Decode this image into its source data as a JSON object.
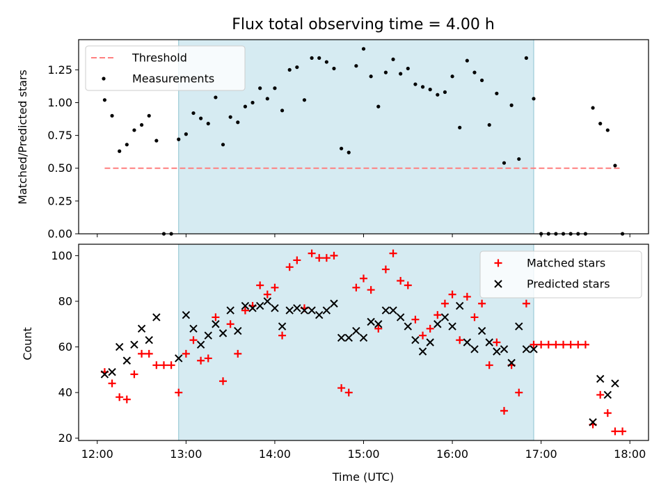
{
  "chart_data": [
    {
      "type": "scatter",
      "title": "Flux total observing time = 4.00 h",
      "xlabel": "",
      "ylabel": "Matched/Predicted stars",
      "xlim_hours": [
        11.79,
        18.21
      ],
      "ylim": [
        0,
        1.48
      ],
      "yticks": [
        0.0,
        0.25,
        0.5,
        0.75,
        1.0,
        1.25
      ],
      "ytick_labels": [
        "0.00",
        "0.25",
        "0.50",
        "0.75",
        "1.00",
        "1.25"
      ],
      "shaded_span": [
        "12:55",
        "16:55"
      ],
      "shaded_color": "#add8e6",
      "legend_placement": "upper-left",
      "series": [
        {
          "name": "Threshold",
          "kind": "dashed-line",
          "color": "#ff7f7f",
          "x": [
            "12:05",
            "17:54"
          ],
          "y": [
            0.5,
            0.5
          ]
        },
        {
          "name": "Measurements",
          "kind": "dots",
          "color": "#000000",
          "x": [
            "12:05",
            "12:10",
            "12:15",
            "12:20",
            "12:25",
            "12:30",
            "12:35",
            "12:40",
            "12:45",
            "12:50",
            "12:55",
            "13:00",
            "13:05",
            "13:10",
            "13:15",
            "13:20",
            "13:25",
            "13:30",
            "13:35",
            "13:40",
            "13:45",
            "13:50",
            "13:55",
            "14:00",
            "14:05",
            "14:10",
            "14:15",
            "14:20",
            "14:25",
            "14:30",
            "14:35",
            "14:40",
            "14:45",
            "14:50",
            "14:55",
            "15:00",
            "15:05",
            "15:10",
            "15:15",
            "15:20",
            "15:25",
            "15:30",
            "15:35",
            "15:40",
            "15:45",
            "15:50",
            "15:55",
            "16:00",
            "16:05",
            "16:10",
            "16:15",
            "16:20",
            "16:25",
            "16:30",
            "16:35",
            "16:40",
            "16:45",
            "16:50",
            "16:55",
            "17:00",
            "17:05",
            "17:10",
            "17:15",
            "17:20",
            "17:25",
            "17:30",
            "17:35",
            "17:40",
            "17:45",
            "17:50",
            "17:55"
          ],
          "y": [
            1.02,
            0.9,
            0.63,
            0.68,
            0.79,
            0.83,
            0.9,
            0.71,
            0.0,
            0.0,
            0.72,
            0.76,
            0.92,
            0.88,
            0.84,
            1.04,
            0.68,
            0.89,
            0.85,
            0.97,
            1.0,
            1.11,
            1.03,
            1.11,
            0.94,
            1.25,
            1.27,
            1.02,
            1.34,
            1.34,
            1.31,
            1.26,
            0.65,
            0.62,
            1.28,
            1.41,
            1.2,
            0.97,
            1.23,
            1.33,
            1.22,
            1.26,
            1.14,
            1.12,
            1.1,
            1.06,
            1.08,
            1.2,
            0.81,
            1.32,
            1.23,
            1.17,
            0.83,
            1.07,
            0.54,
            0.98,
            0.57,
            1.34,
            1.03,
            0.0,
            0.0,
            0.0,
            0.0,
            0.0,
            0.0,
            0.0,
            0.96,
            0.84,
            0.79,
            0.52,
            0.0
          ]
        }
      ]
    },
    {
      "type": "scatter",
      "title": "",
      "xlabel": "Time (UTC)",
      "ylabel": "Count",
      "xlim_hours": [
        11.79,
        18.21
      ],
      "ylim": [
        19,
        105
      ],
      "yticks": [
        20,
        40,
        60,
        80,
        100
      ],
      "ytick_labels": [
        "20",
        "40",
        "60",
        "80",
        "100"
      ],
      "xticks": [
        "12:00",
        "13:00",
        "14:00",
        "15:00",
        "16:00",
        "17:00",
        "18:00"
      ],
      "shaded_span": [
        "12:55",
        "16:55"
      ],
      "shaded_color": "#add8e6",
      "legend_placement": "upper-right",
      "series": [
        {
          "name": "Matched stars",
          "kind": "plus",
          "color": "#ff0000",
          "x": [
            "12:05",
            "12:10",
            "12:15",
            "12:20",
            "12:25",
            "12:30",
            "12:35",
            "12:40",
            "12:45",
            "12:50",
            "12:55",
            "13:00",
            "13:05",
            "13:10",
            "13:15",
            "13:20",
            "13:25",
            "13:30",
            "13:35",
            "13:40",
            "13:45",
            "13:50",
            "13:55",
            "14:00",
            "14:05",
            "14:10",
            "14:15",
            "14:20",
            "14:25",
            "14:30",
            "14:35",
            "14:40",
            "14:45",
            "14:50",
            "14:55",
            "15:00",
            "15:05",
            "15:10",
            "15:15",
            "15:20",
            "15:25",
            "15:30",
            "15:35",
            "15:40",
            "15:45",
            "15:50",
            "15:55",
            "16:00",
            "16:05",
            "16:10",
            "16:15",
            "16:20",
            "16:25",
            "16:30",
            "16:35",
            "16:40",
            "16:45",
            "16:50",
            "16:55",
            "17:00",
            "17:05",
            "17:10",
            "17:15",
            "17:20",
            "17:25",
            "17:30",
            "17:35",
            "17:40",
            "17:45",
            "17:50",
            "17:55"
          ],
          "y": [
            49,
            44,
            38,
            37,
            48,
            57,
            57,
            52,
            52,
            52,
            40,
            57,
            63,
            54,
            55,
            73,
            45,
            70,
            57,
            76,
            78,
            87,
            83,
            86,
            65,
            95,
            98,
            77,
            101,
            99,
            99,
            100,
            42,
            40,
            86,
            90,
            85,
            68,
            94,
            101,
            89,
            87,
            72,
            65,
            68,
            74,
            79,
            83,
            63,
            82,
            73,
            79,
            52,
            62,
            32,
            52,
            40,
            79,
            61,
            61,
            61,
            61,
            61,
            61,
            61,
            61,
            26,
            39,
            31,
            23,
            23
          ]
        },
        {
          "name": "Predicted stars",
          "kind": "cross",
          "color": "#000000",
          "x": [
            "12:05",
            "12:10",
            "12:15",
            "12:20",
            "12:25",
            "12:30",
            "12:35",
            "12:40",
            "12:55",
            "13:00",
            "13:05",
            "13:10",
            "13:15",
            "13:20",
            "13:25",
            "13:30",
            "13:35",
            "13:40",
            "13:45",
            "13:50",
            "13:55",
            "14:00",
            "14:05",
            "14:10",
            "14:15",
            "14:20",
            "14:25",
            "14:30",
            "14:35",
            "14:40",
            "14:45",
            "14:50",
            "14:55",
            "15:00",
            "15:05",
            "15:10",
            "15:15",
            "15:20",
            "15:25",
            "15:30",
            "15:35",
            "15:40",
            "15:45",
            "15:50",
            "15:55",
            "16:00",
            "16:05",
            "16:10",
            "16:15",
            "16:20",
            "16:25",
            "16:30",
            "16:35",
            "16:40",
            "16:45",
            "16:50",
            "16:55",
            "17:35",
            "17:40",
            "17:45",
            "17:50"
          ],
          "y": [
            48,
            49,
            60,
            54,
            61,
            68,
            63,
            73,
            55,
            74,
            68,
            61,
            65,
            70,
            66,
            76,
            67,
            78,
            77,
            78,
            80,
            77,
            69,
            76,
            77,
            76,
            76,
            74,
            76,
            79,
            64,
            64,
            67,
            64,
            71,
            70,
            76,
            76,
            73,
            69,
            63,
            58,
            62,
            70,
            73,
            69,
            78,
            62,
            59,
            67,
            62,
            58,
            59,
            53,
            69,
            59,
            59,
            27,
            46,
            39,
            44
          ]
        }
      ]
    }
  ]
}
